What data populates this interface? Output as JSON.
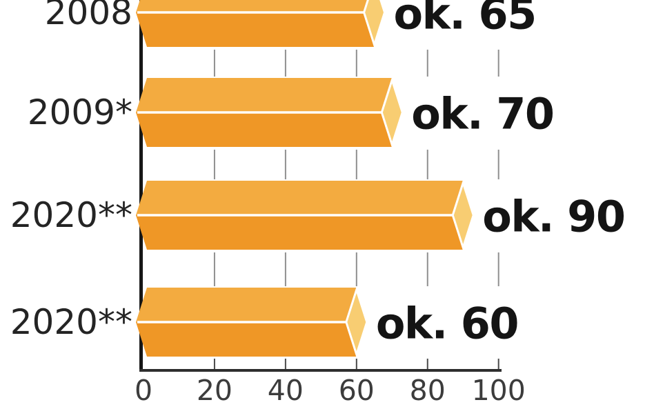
{
  "chart_data": {
    "type": "bar",
    "orientation": "horizontal",
    "title": "",
    "xlabel": "",
    "ylabel": "",
    "categories": [
      "2008",
      "2009*",
      "2020**",
      "2020**"
    ],
    "values": [
      65,
      70,
      90,
      60
    ],
    "value_labels": [
      "ok. 65",
      "ok. 70",
      "ok. 90",
      "ok. 60"
    ],
    "x_ticks": [
      0,
      20,
      40,
      60,
      80,
      100
    ],
    "x_tick_labels": [
      "0",
      "20",
      "40",
      "60",
      "80",
      "100"
    ],
    "xlim": [
      0,
      100
    ],
    "grid": "vertical segments between bar rows",
    "legend": "none",
    "style": {
      "bar_top_face": "#F3AB40",
      "bar_bottom_face": "#EF9726",
      "bar_end_cap": "#F8CD72",
      "bar_seam": "#FFFFFF",
      "gridline": "#8F8F8F",
      "axis_tick": "#4A4A4A",
      "y_axis_line": "#161616",
      "x_axis_line": "#2E2E2E",
      "category_text": "#242424",
      "value_text": "#141414",
      "tick_text": "#3C3C3C",
      "background": "#FFFFFF"
    }
  }
}
